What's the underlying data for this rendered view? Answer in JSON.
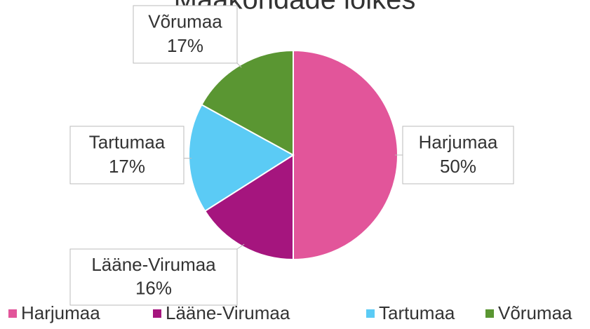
{
  "chart_data": {
    "type": "pie",
    "title": "Maakondade lõikes",
    "categories": [
      "Harjumaa",
      "Lääne-Virumaa",
      "Tartumaa",
      "Võrumaa"
    ],
    "values": [
      50,
      16,
      17,
      17
    ],
    "value_labels": [
      "50%",
      "16%",
      "17%",
      "17%"
    ],
    "colors": [
      "#e2559a",
      "#a5157e",
      "#5bcbf5",
      "#5a9632"
    ],
    "legend": "bottom"
  }
}
